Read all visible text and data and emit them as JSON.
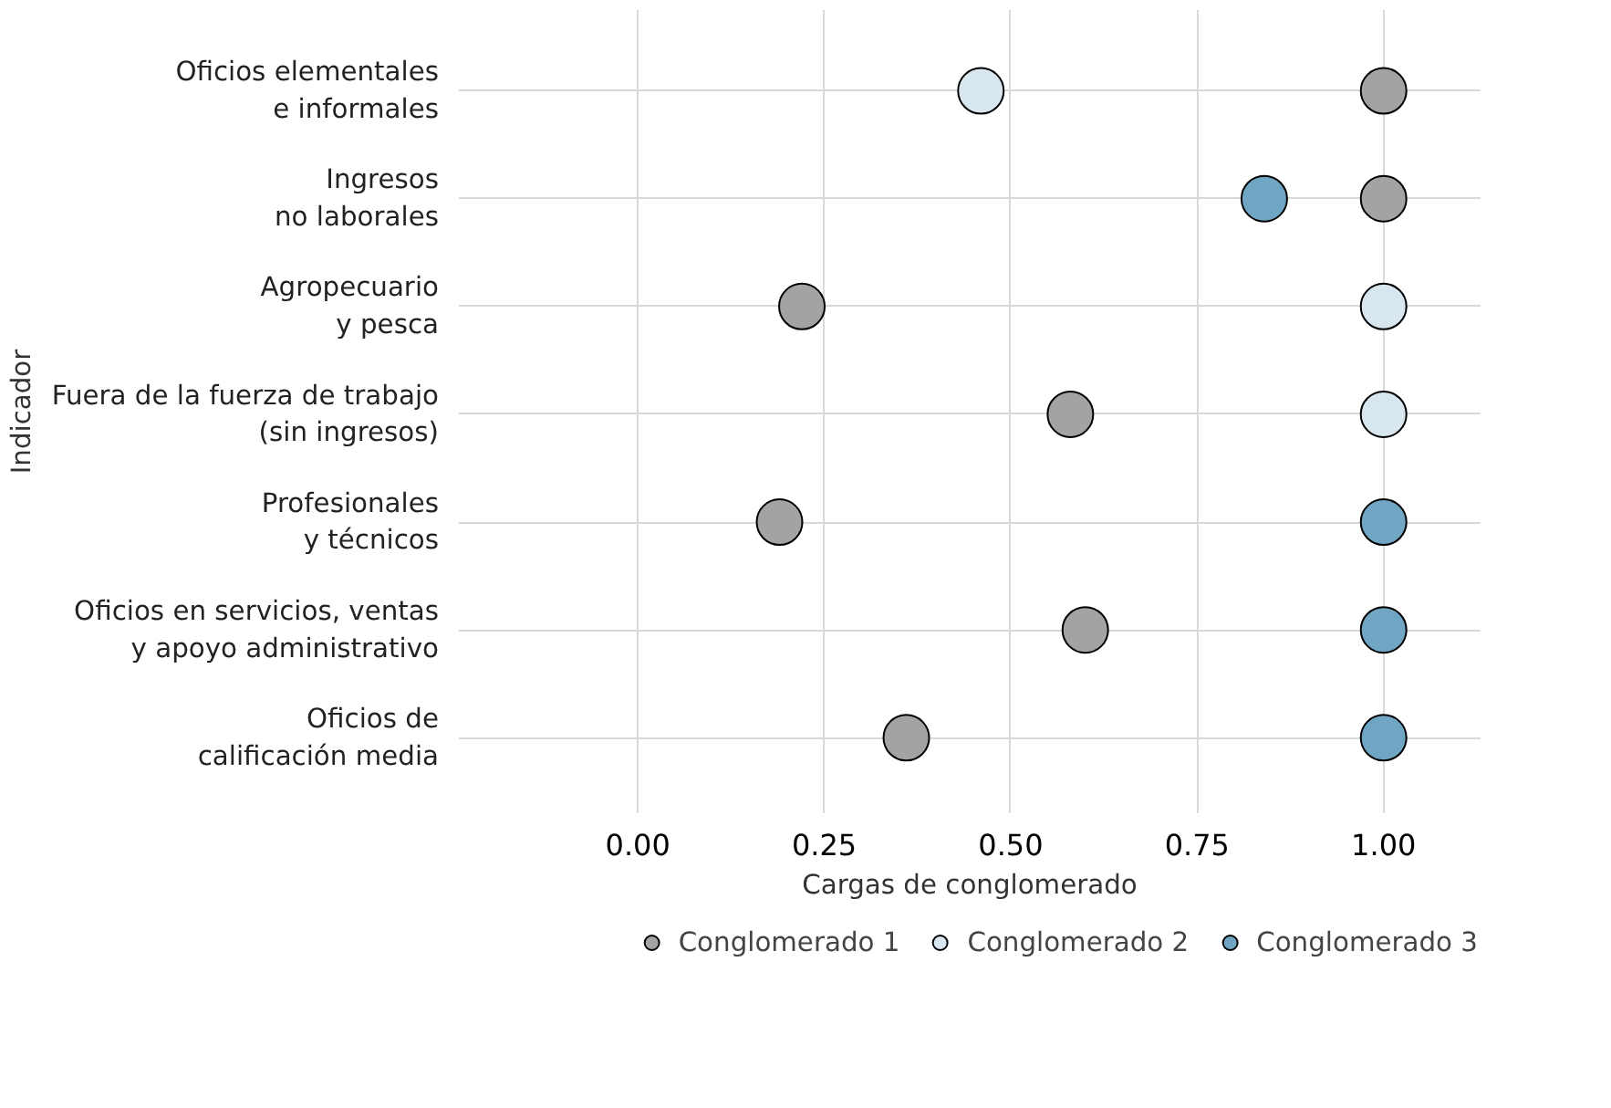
{
  "chart_data": {
    "type": "scatter",
    "orientation": "horizontal",
    "categories": [
      "Oficios elementales\ne informales",
      "Ingresos\nno laborales",
      "Agropecuario\ny pesca",
      "Fuera de la fuerza de trabajo\n(sin ingresos)",
      "Profesionales\ny técnicos",
      "Oficios en servicios, ventas\ny apoyo administrativo",
      "Oficios de\ncalificación media"
    ],
    "series": [
      {
        "name": "Conglomerado 1",
        "color": "#a3a3a3",
        "values": [
          1.0,
          1.0,
          0.22,
          0.58,
          0.19,
          0.6,
          0.36
        ]
      },
      {
        "name": "Conglomerado 2",
        "color": "#d8e6ef",
        "values": [
          0.46,
          null,
          1.0,
          1.0,
          null,
          null,
          null
        ]
      },
      {
        "name": "Conglomerado 3",
        "color": "#70a5c4",
        "values": [
          null,
          0.84,
          null,
          null,
          1.0,
          1.0,
          1.0
        ]
      }
    ],
    "xlabel": "Cargas de conglomerado",
    "ylabel": "Indicador",
    "xlim": [
      -0.24,
      1.13
    ],
    "xticks": [
      {
        "value": 0,
        "label": "0.00"
      },
      {
        "value": 0.25,
        "label": "0.25"
      },
      {
        "value": 0.5,
        "label": "0.50"
      },
      {
        "value": 0.75,
        "label": "0.75"
      },
      {
        "value": 1,
        "label": "1.00"
      }
    ],
    "grid": true,
    "legend": "bottom",
    "marker": "circle"
  }
}
